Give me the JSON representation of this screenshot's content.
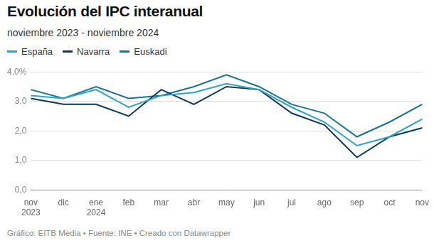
{
  "chart_data": {
    "type": "line",
    "title": "Evolución del IPC interanual",
    "subtitle": "noviembre 2023 - noviembre 2024",
    "footer": "Gráfico: EITB Media • Fuente: INE • Creado con Datawrapper",
    "categories": [
      "nov 2023",
      "dic",
      "ene 2024",
      "feb",
      "mar",
      "abr",
      "may",
      "jun",
      "jul",
      "ago",
      "sep",
      "oct",
      "nov"
    ],
    "series": [
      {
        "name": "España",
        "color": "#2ba3c8",
        "values": [
          3.2,
          3.1,
          3.4,
          2.8,
          3.2,
          3.3,
          3.6,
          3.4,
          2.8,
          2.3,
          1.5,
          1.8,
          2.4
        ]
      },
      {
        "name": "Navarra",
        "color": "#0c3a58",
        "values": [
          3.1,
          2.9,
          2.9,
          2.5,
          3.4,
          2.9,
          3.5,
          3.4,
          2.6,
          2.2,
          1.1,
          1.8,
          2.1
        ]
      },
      {
        "name": "Euskadi",
        "color": "#1a7197",
        "values": [
          3.4,
          3.1,
          3.5,
          3.1,
          3.2,
          3.5,
          3.9,
          3.5,
          2.9,
          2.6,
          1.8,
          2.3,
          2.9
        ]
      }
    ],
    "ylim": [
      0,
      4
    ],
    "yticks": [
      {
        "value": 0,
        "label": "0,0"
      },
      {
        "value": 1,
        "label": "1,0"
      },
      {
        "value": 2,
        "label": "2,0"
      },
      {
        "value": 3,
        "label": "3,0"
      },
      {
        "value": 4,
        "label": "4,0%"
      }
    ],
    "grid": true,
    "legend": "top"
  }
}
